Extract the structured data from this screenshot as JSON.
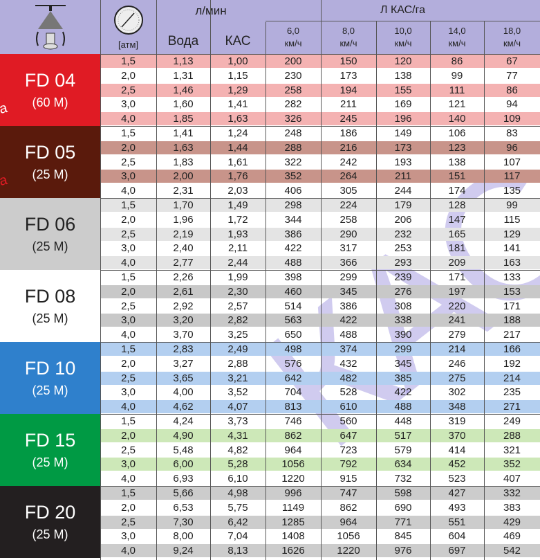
{
  "header": {
    "flow": "л/мин",
    "water": "Вода",
    "kas": "КАС",
    "atm": "[атм]",
    "rate": "Л КАС/га",
    "speeds": [
      {
        "v": "6,0",
        "u": "км/ч"
      },
      {
        "v": "8,0",
        "u": "км/ч"
      },
      {
        "v": "10,0",
        "u": "км/ч"
      },
      {
        "v": "14,0",
        "u": "км/ч"
      },
      {
        "v": "18,0",
        "u": "км/ч"
      }
    ],
    "icons": [
      "nozzle-icon",
      "pressure-gauge-icon"
    ]
  },
  "watermark": "КАС",
  "side_text": "чка",
  "groups": [
    {
      "name": "FD 04",
      "sub": "(60 M)",
      "bg": "#e01b24",
      "fg": "#ffffff",
      "stripe": "#f4b2b2",
      "odd": false,
      "rows": [
        [
          "1,5",
          "1,13",
          "1,00",
          "200",
          "150",
          "120",
          "86",
          "67"
        ],
        [
          "2,0",
          "1,31",
          "1,15",
          "230",
          "173",
          "138",
          "99",
          "77"
        ],
        [
          "2,5",
          "1,46",
          "1,29",
          "258",
          "194",
          "155",
          "111",
          "86"
        ],
        [
          "3,0",
          "1,60",
          "1,41",
          "282",
          "211",
          "169",
          "121",
          "94"
        ],
        [
          "4,0",
          "1,85",
          "1,63",
          "326",
          "245",
          "196",
          "140",
          "109"
        ]
      ]
    },
    {
      "name": "FD 05",
      "sub": "(25 M)",
      "bg": "#5a1a0c",
      "fg": "#ffffff",
      "stripe": "#c8948a",
      "odd": true,
      "rows": [
        [
          "1,5",
          "1,41",
          "1,24",
          "248",
          "186",
          "149",
          "106",
          "83"
        ],
        [
          "2,0",
          "1,63",
          "1,44",
          "288",
          "216",
          "173",
          "123",
          "96"
        ],
        [
          "2,5",
          "1,83",
          "1,61",
          "322",
          "242",
          "193",
          "138",
          "107"
        ],
        [
          "3,0",
          "2,00",
          "1,76",
          "352",
          "264",
          "211",
          "151",
          "117"
        ],
        [
          "4,0",
          "2,31",
          "2,03",
          "406",
          "305",
          "244",
          "174",
          "135"
        ]
      ]
    },
    {
      "name": "FD 06",
      "sub": "(25 M)",
      "bg": "#cccccc",
      "fg": "#222222",
      "stripe": "#e4e4e4",
      "odd": false,
      "rows": [
        [
          "1,5",
          "1,70",
          "1,49",
          "298",
          "224",
          "179",
          "128",
          "99"
        ],
        [
          "2,0",
          "1,96",
          "1,72",
          "344",
          "258",
          "206",
          "147",
          "115"
        ],
        [
          "2,5",
          "2,19",
          "1,93",
          "386",
          "290",
          "232",
          "165",
          "129"
        ],
        [
          "3,0",
          "2,40",
          "2,11",
          "422",
          "317",
          "253",
          "181",
          "141"
        ],
        [
          "4,0",
          "2,77",
          "2,44",
          "488",
          "366",
          "293",
          "209",
          "163"
        ]
      ]
    },
    {
      "name": "FD 08",
      "sub": "(25 M)",
      "bg": "#ffffff",
      "fg": "#222222",
      "stripe": "#c8c8c8",
      "odd": true,
      "rows": [
        [
          "1,5",
          "2,26",
          "1,99",
          "398",
          "299",
          "239",
          "171",
          "133"
        ],
        [
          "2,0",
          "2,61",
          "2,30",
          "460",
          "345",
          "276",
          "197",
          "153"
        ],
        [
          "2,5",
          "2,92",
          "2,57",
          "514",
          "386",
          "308",
          "220",
          "171"
        ],
        [
          "3,0",
          "3,20",
          "2,82",
          "563",
          "422",
          "338",
          "241",
          "188"
        ],
        [
          "4,0",
          "3,70",
          "3,25",
          "650",
          "488",
          "390",
          "279",
          "217"
        ]
      ]
    },
    {
      "name": "FD 10",
      "sub": "(25 M)",
      "bg": "#2f80cc",
      "fg": "#ffffff",
      "stripe": "#b3cff0",
      "odd": false,
      "rows": [
        [
          "1,5",
          "2,83",
          "2,49",
          "498",
          "374",
          "299",
          "214",
          "166"
        ],
        [
          "2,0",
          "3,27",
          "2,88",
          "576",
          "432",
          "345",
          "246",
          "192"
        ],
        [
          "2,5",
          "3,65",
          "3,21",
          "642",
          "482",
          "385",
          "275",
          "214"
        ],
        [
          "3,0",
          "4,00",
          "3,52",
          "704",
          "528",
          "422",
          "302",
          "235"
        ],
        [
          "4,0",
          "4,62",
          "4,07",
          "813",
          "610",
          "488",
          "348",
          "271"
        ]
      ]
    },
    {
      "name": "FD 15",
      "sub": "(25 M)",
      "bg": "#009a44",
      "fg": "#ffffff",
      "stripe": "#cde8b8",
      "odd": true,
      "rows": [
        [
          "1,5",
          "4,24",
          "3,73",
          "746",
          "560",
          "448",
          "319",
          "249"
        ],
        [
          "2,0",
          "4,90",
          "4,31",
          "862",
          "647",
          "517",
          "370",
          "288"
        ],
        [
          "2,5",
          "5,48",
          "4,82",
          "964",
          "723",
          "579",
          "414",
          "321"
        ],
        [
          "3,0",
          "6,00",
          "5,28",
          "1056",
          "792",
          "634",
          "452",
          "352"
        ],
        [
          "4,0",
          "6,93",
          "6,10",
          "1220",
          "915",
          "732",
          "523",
          "407"
        ]
      ]
    },
    {
      "name": "FD 20",
      "sub": "(25 M)",
      "bg": "#231f20",
      "fg": "#ffffff",
      "stripe": "#cccccc",
      "odd": false,
      "rows": [
        [
          "1,5",
          "5,66",
          "4,98",
          "996",
          "747",
          "598",
          "427",
          "332"
        ],
        [
          "2,0",
          "6,53",
          "5,75",
          "1149",
          "862",
          "690",
          "493",
          "383"
        ],
        [
          "2,5",
          "7,30",
          "6,42",
          "1285",
          "964",
          "771",
          "551",
          "429"
        ],
        [
          "3,0",
          "8,00",
          "7,04",
          "1408",
          "1056",
          "845",
          "604",
          "469"
        ],
        [
          "4,0",
          "9,24",
          "8,13",
          "1626",
          "1220",
          "976",
          "697",
          "542"
        ]
      ]
    }
  ]
}
